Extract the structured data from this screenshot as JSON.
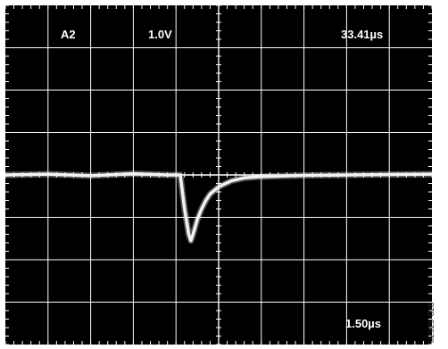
{
  "figure_id": "02929-028",
  "colors": {
    "screen": "#000000",
    "grid": "#ffffff",
    "trace": "#f2f2f2",
    "text": "#ffffff"
  },
  "chart_data": {
    "type": "line",
    "title": "",
    "xlabel": "",
    "ylabel": "",
    "grid": true,
    "divisions": {
      "x": 10,
      "y": 8
    },
    "readouts": {
      "channel": "A2",
      "volts_per_div": "1.0V",
      "trigger_time": "33.41µs",
      "time_per_div": "1.50µs"
    },
    "xlim": [
      0,
      10
    ],
    "ylim": [
      -4,
      4
    ],
    "x_unit": "div",
    "y_unit": "div",
    "series": [
      {
        "x": [
          0,
          1,
          2,
          3,
          3.8,
          4.1,
          4.2,
          4.3,
          4.35,
          4.4,
          4.5,
          4.6,
          4.7,
          4.8,
          5.0,
          5.3,
          5.6,
          6.0,
          7.0,
          8.0,
          9.0,
          10.0
        ],
        "y": [
          0.0,
          0.02,
          -0.02,
          0.03,
          0.0,
          0.0,
          -0.8,
          -1.4,
          -1.55,
          -1.4,
          -1.05,
          -0.8,
          -0.6,
          -0.45,
          -0.28,
          -0.14,
          -0.07,
          -0.04,
          -0.01,
          0.0,
          0.01,
          0.02
        ]
      }
    ]
  }
}
